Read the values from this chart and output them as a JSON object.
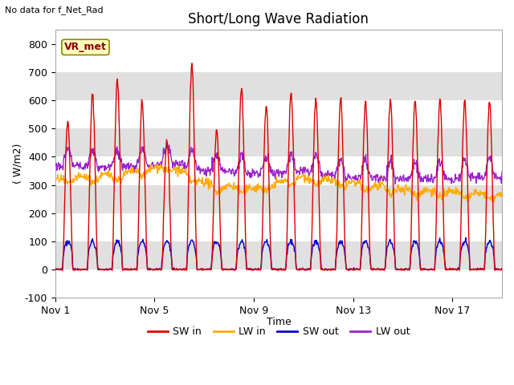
{
  "title": "Short/Long Wave Radiation",
  "xlabel": "Time",
  "ylabel": "( W/m2)",
  "no_data_label": "No data for f_Net_Rad",
  "legend_label": "VR_met",
  "ylim": [
    -100,
    850
  ],
  "yticks": [
    -100,
    0,
    100,
    200,
    300,
    400,
    500,
    600,
    700,
    800
  ],
  "xtick_labels": [
    "Nov 1",
    "Nov 5",
    "Nov 9",
    "Nov 13",
    "Nov 17"
  ],
  "xtick_positions": [
    0,
    4,
    8,
    12,
    16
  ],
  "n_days": 18,
  "colors": {
    "SW_in": "#dd0000",
    "LW_in": "#ffaa00",
    "SW_out": "#0000cc",
    "LW_out": "#9922cc"
  },
  "band_colors": [
    "#ffffff",
    "#e0e0e0"
  ],
  "legend_items": [
    "SW in",
    "LW in",
    "SW out",
    "LW out"
  ],
  "legend_colors": [
    "#dd0000",
    "#ffaa00",
    "#0000cc",
    "#9922cc"
  ],
  "SW_in_peaks": [
    530,
    620,
    670,
    595,
    460,
    735,
    490,
    640,
    580,
    630,
    605,
    605,
    595,
    605,
    600,
    605,
    600,
    595
  ],
  "figsize": [
    6.4,
    4.8
  ],
  "dpi": 100
}
